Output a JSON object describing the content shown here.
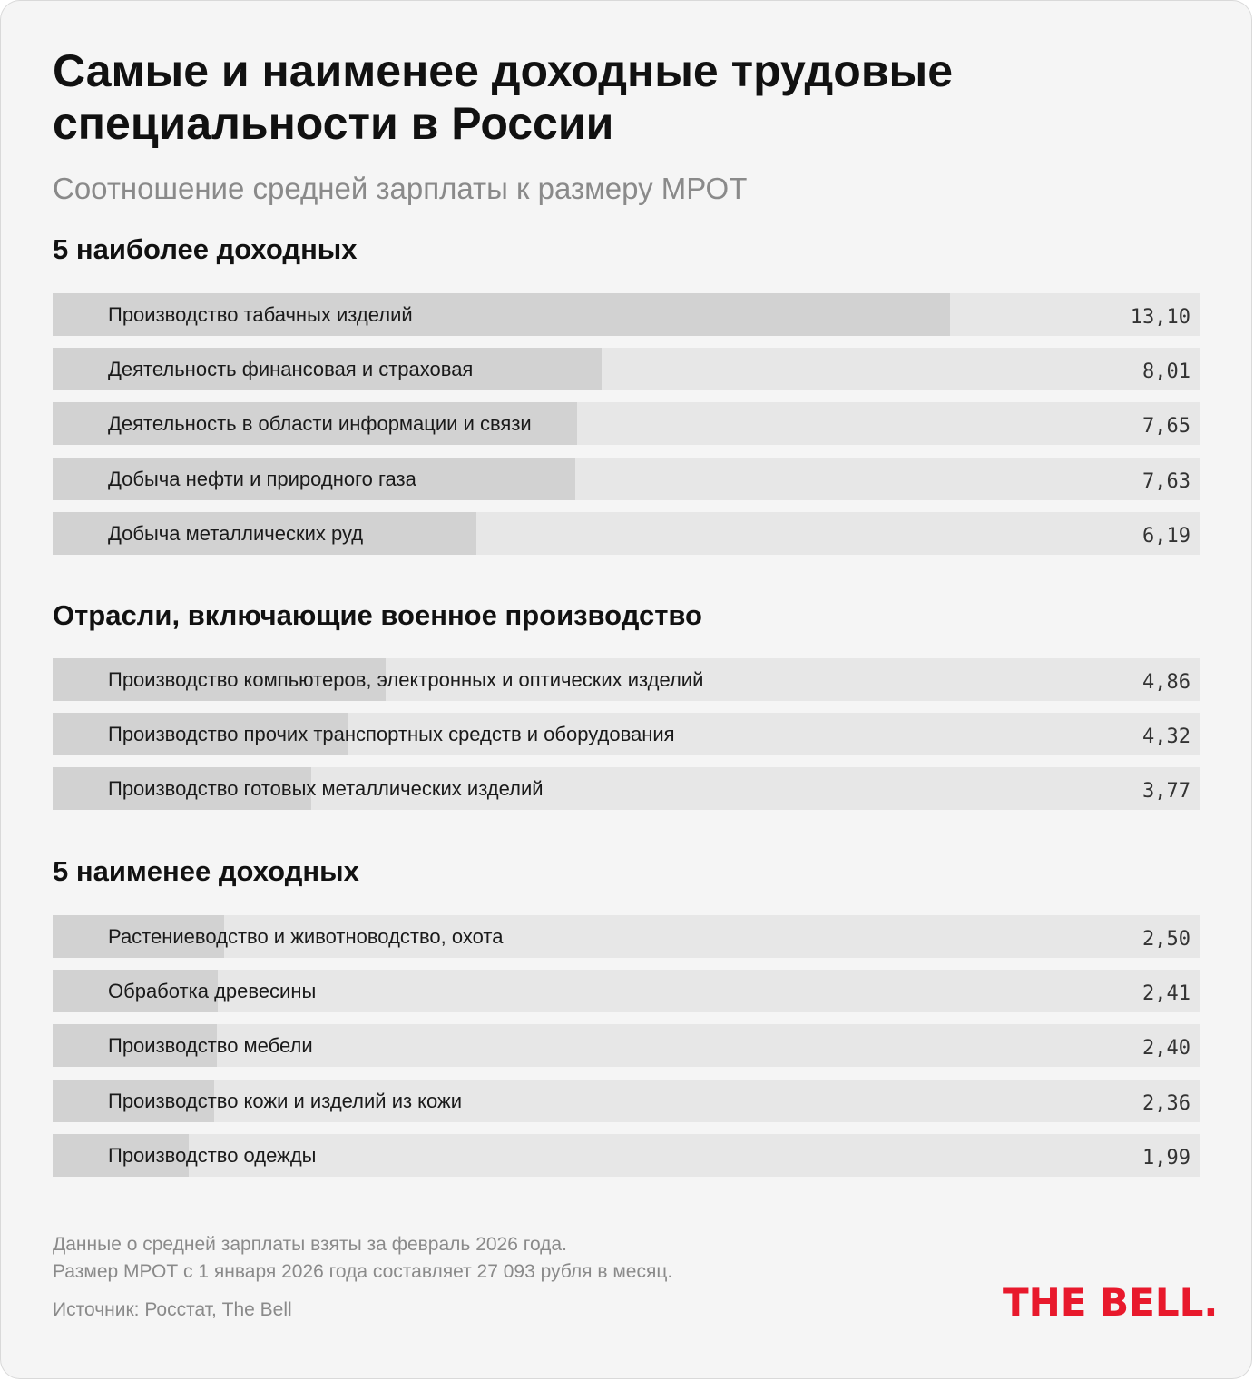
{
  "title": "Самые и наименее доходные трудовые специальности в России",
  "subtitle": "Соотношение средней зарплаты к размеру МРОТ",
  "colors": {
    "bar": "#d2d2d2",
    "track": "#e7e7e7",
    "logo": "#e8192c"
  },
  "chart_data": {
    "type": "bar",
    "orientation": "horizontal",
    "xlim": [
      0,
      16.75
    ],
    "groups": [
      {
        "title": "5 наиболее доходных",
        "items": [
          {
            "label": "Производство табачных изделий",
            "value": 13.1,
            "display": "13,10",
            "icon": "cigarette-icon"
          },
          {
            "label": "Деятельность финансовая и страховая",
            "value": 8.01,
            "display": "8,01",
            "icon": "money-icon"
          },
          {
            "label": "Деятельность в области информации и связи",
            "value": 7.65,
            "display": "7,65",
            "icon": "signal-bars-icon"
          },
          {
            "label": "Добыча нефти и природного газа",
            "value": 7.63,
            "display": "7,63",
            "icon": "oil-barrel-icon"
          },
          {
            "label": "Добыча металлических руд",
            "value": 6.19,
            "display": "6,19",
            "icon": "pickaxe-icon"
          }
        ]
      },
      {
        "title": "Отрасли, включающие военное производство",
        "items": [
          {
            "label": "Производство компьютеров, электронных и оптических изделий",
            "value": 4.86,
            "display": "4,86",
            "icon": "computer-monitor-icon"
          },
          {
            "label": "Производство прочих транспортных средств и оборудования",
            "value": 4.32,
            "display": "4,32",
            "icon": "drone-icon"
          },
          {
            "label": "Производство готовых металлических изделий",
            "value": 3.77,
            "display": "3,77",
            "icon": "military-helmet-icon"
          }
        ]
      },
      {
        "title": "5 наименее доходных",
        "items": [
          {
            "label": "Растениеводство и животноводство, охота",
            "value": 2.5,
            "display": "2,50",
            "icon": "wheat-icon"
          },
          {
            "label": "Обработка древесины",
            "value": 2.41,
            "display": "2,41",
            "icon": "wood-log-icon"
          },
          {
            "label": "Производство мебели",
            "value": 2.4,
            "display": "2,40",
            "icon": "bed-icon"
          },
          {
            "label": "Производство кожи и изделий из кожи",
            "value": 2.36,
            "display": "2,36",
            "icon": "handbag-icon"
          },
          {
            "label": "Производство одежды",
            "value": 1.99,
            "display": "1,99",
            "icon": "shirt-icon"
          }
        ]
      }
    ]
  },
  "footnotes": [
    "Данные о средней зарплаты взяты за февраль 2026 года.",
    "Размер МРОТ с 1 января 2026 года составляет 27 093 рубля в месяц."
  ],
  "source": "Источник: Росстат, The Bell",
  "logo": "THE BELL."
}
